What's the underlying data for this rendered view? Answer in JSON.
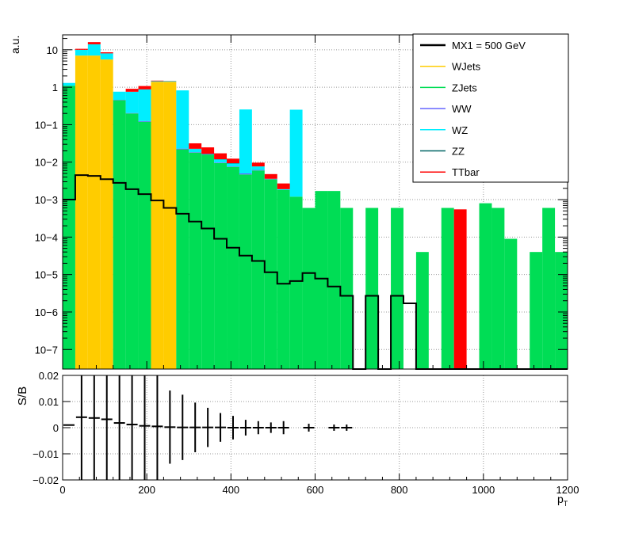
{
  "chart_data": [
    {
      "type": "bar",
      "panel": "top",
      "stacked": true,
      "ylabel": "a.u.",
      "log_y": true,
      "grid": true,
      "legend_position": "top-right",
      "xlim": [
        0,
        1200
      ],
      "ylim": [
        3e-08,
        25
      ],
      "bin_width": 30,
      "x_ticks": [
        0,
        200,
        400,
        600,
        800,
        1000,
        1200
      ],
      "y_tick_labels": [
        {
          "value": 10,
          "label": "10"
        },
        {
          "value": 1,
          "label": "1"
        },
        {
          "value": 0.1,
          "label": "10−1"
        },
        {
          "value": 0.01,
          "label": "10−2"
        },
        {
          "value": 0.001,
          "label": "10−3"
        },
        {
          "value": 0.0001,
          "label": "10−4"
        },
        {
          "value": 1e-05,
          "label": "10−5"
        },
        {
          "value": 1e-06,
          "label": "10−6"
        },
        {
          "value": 1e-07,
          "label": "10−7"
        }
      ],
      "series": [
        {
          "name": "WJets",
          "color": "#ffcc00",
          "bins": [
            [
              30,
              7.0
            ],
            [
              60,
              7.0
            ],
            [
              90,
              5.5
            ],
            [
              210,
              1.4
            ],
            [
              240,
              1.4
            ]
          ]
        },
        {
          "name": "ZJets",
          "color": "#00dd55",
          "bins": [
            [
              0,
              1.1
            ],
            [
              120,
              0.45
            ],
            [
              150,
              0.2
            ],
            [
              180,
              0.12
            ],
            [
              270,
              0.022
            ],
            [
              300,
              0.018
            ],
            [
              330,
              0.016
            ],
            [
              360,
              0.0095
            ],
            [
              390,
              0.0075
            ],
            [
              420,
              0.0047
            ],
            [
              450,
              0.006
            ],
            [
              480,
              0.0035
            ],
            [
              510,
              0.0018
            ],
            [
              540,
              0.0012
            ],
            [
              570,
              0.0006
            ],
            [
              600,
              0.0017
            ],
            [
              630,
              0.0017
            ],
            [
              660,
              0.0006
            ],
            [
              720,
              0.0006
            ],
            [
              780,
              0.0006
            ],
            [
              840,
              4e-05
            ],
            [
              900,
              0.0006
            ],
            [
              990,
              0.0008
            ],
            [
              1020,
              0.0006
            ],
            [
              1050,
              9e-05
            ],
            [
              1110,
              4e-05
            ],
            [
              1140,
              0.0006
            ],
            [
              1170,
              4e-05
            ]
          ]
        },
        {
          "name": "WW",
          "color": "#6666ff",
          "bins": [
            [
              90,
              0.005
            ],
            [
              120,
              0.01
            ],
            [
              150,
              0.005
            ],
            [
              180,
              0.005
            ],
            [
              270,
              0.001
            ],
            [
              300,
              0.0005
            ],
            [
              330,
              0.0005
            ],
            [
              360,
              0.0003
            ],
            [
              390,
              0.0002
            ],
            [
              420,
              0.0003
            ],
            [
              450,
              0.0002
            ],
            [
              480,
              0.0001
            ]
          ]
        },
        {
          "name": "WZ",
          "color": "#00eeff",
          "bins": [
            [
              0,
              0.2
            ],
            [
              30,
              3.0
            ],
            [
              60,
              7.0
            ],
            [
              90,
              2.5
            ],
            [
              120,
              0.3
            ],
            [
              150,
              0.55
            ],
            [
              180,
              0.75
            ],
            [
              210,
              0.05
            ],
            [
              240,
              0.05
            ],
            [
              270,
              0.8
            ],
            [
              300,
              0.004
            ],
            [
              360,
              0.002
            ],
            [
              390,
              0.0015
            ],
            [
              420,
              0.25
            ],
            [
              450,
              0.0015
            ],
            [
              510,
              0.0001
            ],
            [
              540,
              0.25
            ]
          ]
        },
        {
          "name": "ZZ",
          "color": "#006666",
          "bins": [
            [
              90,
              0.002
            ],
            [
              120,
              0.003
            ],
            [
              150,
              0.002
            ],
            [
              270,
              0.0005
            ],
            [
              300,
              0.0003
            ],
            [
              330,
              0.0003
            ],
            [
              360,
              0.0002
            ],
            [
              390,
              0.0002
            ]
          ]
        },
        {
          "name": "TTbar",
          "color": "#ff0000",
          "bins": [
            [
              30,
              0.6
            ],
            [
              60,
              2.0
            ],
            [
              90,
              0.55
            ],
            [
              150,
              0.15
            ],
            [
              180,
              0.2
            ],
            [
              210,
              0.05
            ],
            [
              240,
              0.02
            ],
            [
              270,
              0.004
            ],
            [
              300,
              0.009
            ],
            [
              330,
              0.008
            ],
            [
              360,
              0.0052
            ],
            [
              390,
              0.003
            ],
            [
              420,
              0.002
            ],
            [
              450,
              0.002
            ],
            [
              480,
              0.0012
            ],
            [
              510,
              0.0008
            ],
            [
              540,
              0.0002
            ],
            [
              930,
              0.00055
            ]
          ]
        }
      ],
      "signal": {
        "name": "MX1 = 500 GeV",
        "color": "#000000",
        "values": [
          0.001,
          0.0045,
          0.0043,
          0.0035,
          0.0028,
          0.0019,
          0.0014,
          0.00095,
          0.0006,
          0.00042,
          0.00026,
          0.00017,
          9e-05,
          5.2e-05,
          3.2e-05,
          2.3e-05,
          1.15e-05,
          5.7e-06,
          6.7e-06,
          1.1e-05,
          7.8e-06,
          4.8e-06,
          2.7e-06,
          0,
          2.7e-06,
          0,
          2.7e-06,
          1.7e-06,
          0,
          0,
          0,
          0,
          0,
          0,
          0,
          0,
          0,
          0,
          0,
          0
        ]
      }
    },
    {
      "type": "scatter",
      "panel": "bottom",
      "ylabel": "S/B",
      "xlabel": "p_T",
      "xlim": [
        0,
        1200
      ],
      "ylim": [
        -0.02,
        0.02
      ],
      "grid": true,
      "x_ticks": [
        0,
        200,
        400,
        600,
        800,
        1000,
        1200
      ],
      "y_ticks": [
        {
          "value": 0.02,
          "label": "0.02"
        },
        {
          "value": 0.01,
          "label": "0.01"
        },
        {
          "value": 0,
          "label": "0"
        },
        {
          "value": -0.01,
          "label": "−0.01"
        },
        {
          "value": -0.02,
          "label": "−0.02"
        }
      ],
      "points": [
        {
          "x": 15,
          "y": 0.001,
          "err": 0.0
        },
        {
          "x": 45,
          "y": 0.004,
          "err": 0.03
        },
        {
          "x": 75,
          "y": 0.0037,
          "err": 0.03
        },
        {
          "x": 105,
          "y": 0.0032,
          "err": 0.03
        },
        {
          "x": 135,
          "y": 0.0018,
          "err": 0.03
        },
        {
          "x": 165,
          "y": 0.0012,
          "err": 0.03
        },
        {
          "x": 195,
          "y": 0.0007,
          "err": 0.03
        },
        {
          "x": 225,
          "y": 0.0005,
          "err": 0.03
        },
        {
          "x": 255,
          "y": 0.0002,
          "err": 0.014
        },
        {
          "x": 285,
          "y": 0.0001,
          "err": 0.0125
        },
        {
          "x": 315,
          "y": 0.0001,
          "err": 0.0095
        },
        {
          "x": 345,
          "y": 0.0001,
          "err": 0.0075
        },
        {
          "x": 375,
          "y": 0.0001,
          "err": 0.0055
        },
        {
          "x": 405,
          "y": 0.0,
          "err": 0.0045
        },
        {
          "x": 435,
          "y": 0.0,
          "err": 0.003
        },
        {
          "x": 465,
          "y": 0.0,
          "err": 0.0025
        },
        {
          "x": 495,
          "y": 0.0,
          "err": 0.002
        },
        {
          "x": 525,
          "y": 0.0,
          "err": 0.0025
        },
        {
          "x": 585,
          "y": 0.0,
          "err": 0.0015
        },
        {
          "x": 645,
          "y": 0.0,
          "err": 0.0012
        },
        {
          "x": 675,
          "y": 0.0,
          "err": 0.0012
        }
      ]
    }
  ],
  "legend": [
    {
      "label": "MX1 = 500 GeV",
      "color": "#000000"
    },
    {
      "label": "WJets",
      "color": "#ffcc00"
    },
    {
      "label": "ZJets",
      "color": "#00dd55"
    },
    {
      "label": "WW",
      "color": "#6666ff"
    },
    {
      "label": "WZ",
      "color": "#00eeff"
    },
    {
      "label": "ZZ",
      "color": "#006666"
    },
    {
      "label": "TTbar",
      "color": "#ff0000"
    }
  ],
  "labels": {
    "top_ylabel": "a.u.",
    "bottom_ylabel": "S/B",
    "xlabel": "p",
    "xlabel_sub": "T"
  }
}
